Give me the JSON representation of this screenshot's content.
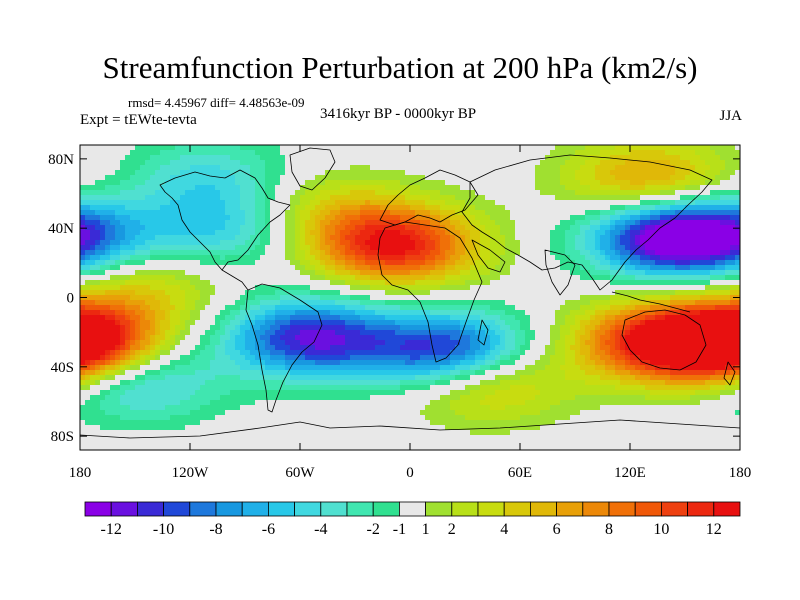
{
  "header": {
    "title": "Streamfunction Perturbation at 200 hPa (km2/s)",
    "stats": "rmsd= 4.45967 diff= 4.48563e-09",
    "experiment": "Expt = tEWte-tevta",
    "period": "3416kyr BP - 0000kyr BP",
    "season": "JJA"
  },
  "chart_data": {
    "type": "heatmap",
    "title": "Streamfunction Perturbation at 200 hPa (km2/s)",
    "xlabel": "",
    "ylabel": "",
    "xlim": [
      -180,
      180
    ],
    "ylim": [
      -90,
      90
    ],
    "x_ticks": [
      {
        "value": -180,
        "label": "180"
      },
      {
        "value": -120,
        "label": "120W"
      },
      {
        "value": -60,
        "label": "60W"
      },
      {
        "value": 0,
        "label": "0"
      },
      {
        "value": 60,
        "label": "60E"
      },
      {
        "value": 120,
        "label": "120E"
      },
      {
        "value": 180,
        "label": "180"
      }
    ],
    "y_ticks": [
      {
        "value": 80,
        "label": "80N"
      },
      {
        "value": 40,
        "label": "40N"
      },
      {
        "value": 0,
        "label": "0"
      },
      {
        "value": -40,
        "label": "40S"
      },
      {
        "value": -80,
        "label": "80S"
      }
    ],
    "colorbar": {
      "boundaries": [
        -13,
        -12,
        -11,
        -10,
        -9,
        -8,
        -7,
        -6,
        -5,
        -4,
        -3,
        -2,
        -1,
        1,
        2,
        3,
        4,
        5,
        6,
        7,
        8,
        9,
        10,
        11,
        12,
        13
      ],
      "labels": [
        {
          "value": -12,
          "label": "-12"
        },
        {
          "value": -10,
          "label": "-10"
        },
        {
          "value": -8,
          "label": "-8"
        },
        {
          "value": -6,
          "label": "-6"
        },
        {
          "value": -4,
          "label": "-4"
        },
        {
          "value": -2,
          "label": "-2"
        },
        {
          "value": -1,
          "label": "-1"
        },
        {
          "value": 1,
          "label": "1"
        },
        {
          "value": 2,
          "label": "2"
        },
        {
          "value": 4,
          "label": "4"
        },
        {
          "value": 6,
          "label": "6"
        },
        {
          "value": 8,
          "label": "8"
        },
        {
          "value": 10,
          "label": "10"
        },
        {
          "value": 12,
          "label": "12"
        }
      ],
      "colors": [
        "#8a00e6",
        "#6a10e0",
        "#3a2ad6",
        "#2048d8",
        "#1e78dc",
        "#1898e0",
        "#20b0e8",
        "#28c8e8",
        "#40d8e0",
        "#50e0d0",
        "#40e6b0",
        "#30e090",
        "#e8e8e8",
        "#a0e030",
        "#b8e018",
        "#c8dc10",
        "#d8c80a",
        "#e0b808",
        "#e8a008",
        "#ec8808",
        "#f07008",
        "#f05808",
        "#ee4010",
        "#ec2810",
        "#e81010"
      ]
    },
    "extrema": [
      {
        "lon": 143,
        "lat": 35,
        "value": -13,
        "sign": "neg"
      },
      {
        "lon": 22,
        "lat": -32,
        "value": -12,
        "sign": "neg"
      },
      {
        "lon": -55,
        "lat": -23,
        "value": -11,
        "sign": "neg"
      },
      {
        "lon": -150,
        "lat": -48,
        "value": -6,
        "sign": "neg"
      },
      {
        "lon": -100,
        "lat": 40,
        "value": -5,
        "sign": "neg"
      },
      {
        "lon": -180,
        "lat": 35,
        "value": -6,
        "sign": "neg"
      },
      {
        "lon": -110,
        "lat": 70,
        "value": -4,
        "sign": "neg"
      },
      {
        "lon": -8,
        "lat": 30,
        "value": 12,
        "sign": "pos"
      },
      {
        "lon": 40,
        "lat": -48,
        "value": 7,
        "sign": "pos"
      },
      {
        "lon": 130,
        "lat": -25,
        "value": 9,
        "sign": "pos"
      },
      {
        "lon": -180,
        "lat": -25,
        "value": 9,
        "sign": "pos"
      },
      {
        "lon": 170,
        "lat": -28,
        "value": 9,
        "sign": "pos"
      },
      {
        "lon": 130,
        "lat": 68,
        "value": 7,
        "sign": "pos"
      },
      {
        "lon": -145,
        "lat": 5,
        "value": 4,
        "sign": "pos"
      },
      {
        "lon": -45,
        "lat": 50,
        "value": 4,
        "sign": "pos"
      }
    ]
  }
}
